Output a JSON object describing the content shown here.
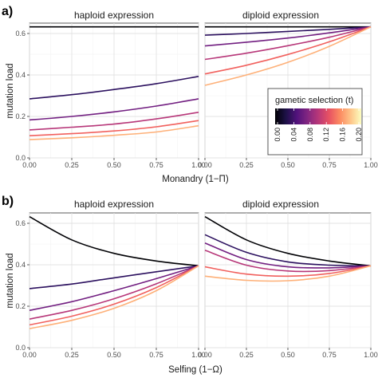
{
  "figure": {
    "panels": [
      {
        "letter": "a)",
        "ylabel": "mutation load",
        "xlabel": "Monandry (1−Π)",
        "facets": [
          "haploid expression",
          "diploid expression"
        ]
      },
      {
        "letter": "b)",
        "ylabel": "mutation load",
        "xlabel": "Selfing (1−Ω)",
        "facets": [
          "haploid expression",
          "diploid expression"
        ]
      }
    ],
    "legend": {
      "title": "gametic selection (t)",
      "ticks": [
        "0.00",
        "0.04",
        "0.08",
        "0.12",
        "0.16",
        "0.20"
      ],
      "range": [
        0,
        0.2
      ],
      "colors": [
        "#000004",
        "#1d1147",
        "#51127c",
        "#822681",
        "#b73779",
        "#e75263",
        "#fc8961",
        "#fec488",
        "#fcfdbf"
      ]
    }
  },
  "chart_data": [
    {
      "type": "line",
      "panel": "a)",
      "facet": "haploid expression",
      "xlabel": "Monandry (1−Π)",
      "ylabel": "mutation load",
      "xlim": [
        0,
        1
      ],
      "ylim": [
        0,
        0.65
      ],
      "xticks": [
        "0.00",
        "0.25",
        "0.50",
        "0.75",
        "1.00"
      ],
      "yticks": [
        "0.0",
        "0.2",
        "0.4",
        "0.6"
      ],
      "grid": true,
      "x": [
        0,
        0.25,
        0.5,
        0.75,
        1.0
      ],
      "series": [
        {
          "t": 0.0,
          "color": "#000004",
          "values": [
            0.632,
            0.632,
            0.632,
            0.632,
            0.632
          ]
        },
        {
          "t": 0.04,
          "color": "#2c115f",
          "values": [
            0.285,
            0.305,
            0.33,
            0.358,
            0.393
          ]
        },
        {
          "t": 0.08,
          "color": "#721f81",
          "values": [
            0.183,
            0.2,
            0.222,
            0.25,
            0.285
          ]
        },
        {
          "t": 0.12,
          "color": "#b73779",
          "values": [
            0.135,
            0.148,
            0.163,
            0.188,
            0.22
          ]
        },
        {
          "t": 0.16,
          "color": "#f1605d",
          "values": [
            0.107,
            0.117,
            0.13,
            0.15,
            0.18
          ]
        },
        {
          "t": 0.2,
          "color": "#feb078",
          "values": [
            0.088,
            0.097,
            0.109,
            0.125,
            0.155
          ]
        }
      ]
    },
    {
      "type": "line",
      "panel": "a)",
      "facet": "diploid expression",
      "xlabel": "Monandry (1−Π)",
      "ylabel": "mutation load",
      "xlim": [
        0,
        1
      ],
      "ylim": [
        0,
        0.65
      ],
      "xticks": [
        "0.00",
        "0.25",
        "0.50",
        "0.75",
        "1.00"
      ],
      "yticks": [
        "0.0",
        "0.2",
        "0.4",
        "0.6"
      ],
      "grid": true,
      "x": [
        0,
        0.25,
        0.5,
        0.75,
        1.0
      ],
      "series": [
        {
          "t": 0.0,
          "color": "#000004",
          "values": [
            0.632,
            0.632,
            0.632,
            0.632,
            0.632
          ]
        },
        {
          "t": 0.04,
          "color": "#2c115f",
          "values": [
            0.592,
            0.6,
            0.61,
            0.62,
            0.632
          ]
        },
        {
          "t": 0.08,
          "color": "#721f81",
          "values": [
            0.54,
            0.558,
            0.578,
            0.603,
            0.632
          ]
        },
        {
          "t": 0.12,
          "color": "#b73779",
          "values": [
            0.475,
            0.505,
            0.541,
            0.582,
            0.632
          ]
        },
        {
          "t": 0.16,
          "color": "#f1605d",
          "values": [
            0.405,
            0.447,
            0.499,
            0.56,
            0.632
          ]
        },
        {
          "t": 0.2,
          "color": "#feb078",
          "values": [
            0.35,
            0.4,
            0.461,
            0.538,
            0.632
          ]
        }
      ]
    },
    {
      "type": "line",
      "panel": "b)",
      "facet": "haploid expression",
      "xlabel": "Selfing (1−Ω)",
      "ylabel": "mutation load",
      "xlim": [
        0,
        1
      ],
      "ylim": [
        0,
        0.65
      ],
      "xticks": [
        "0.00",
        "0.25",
        "0.50",
        "0.75",
        "1.00"
      ],
      "yticks": [
        "0.0",
        "0.2",
        "0.4",
        "0.6"
      ],
      "grid": true,
      "x": [
        0,
        0.25,
        0.5,
        0.75,
        1.0
      ],
      "series": [
        {
          "t": 0.0,
          "color": "#000004",
          "values": [
            0.632,
            0.52,
            0.455,
            0.418,
            0.395
          ]
        },
        {
          "t": 0.04,
          "color": "#2c115f",
          "values": [
            0.285,
            0.307,
            0.337,
            0.366,
            0.395
          ]
        },
        {
          "t": 0.08,
          "color": "#721f81",
          "values": [
            0.18,
            0.222,
            0.275,
            0.333,
            0.395
          ]
        },
        {
          "t": 0.12,
          "color": "#b73779",
          "values": [
            0.138,
            0.18,
            0.236,
            0.308,
            0.395
          ]
        },
        {
          "t": 0.16,
          "color": "#f1605d",
          "values": [
            0.11,
            0.152,
            0.21,
            0.29,
            0.395
          ]
        },
        {
          "t": 0.2,
          "color": "#feb078",
          "values": [
            0.092,
            0.132,
            0.19,
            0.275,
            0.395
          ]
        }
      ]
    },
    {
      "type": "line",
      "panel": "b)",
      "facet": "diploid expression",
      "xlabel": "Selfing (1−Ω)",
      "ylabel": "mutation load",
      "xlim": [
        0,
        1
      ],
      "ylim": [
        0,
        0.65
      ],
      "xticks": [
        "0.00",
        "0.25",
        "0.50",
        "0.75",
        "1.00"
      ],
      "yticks": [
        "0.0",
        "0.2",
        "0.4",
        "0.6"
      ],
      "grid": true,
      "x": [
        0,
        0.25,
        0.5,
        0.75,
        1.0
      ],
      "series": [
        {
          "t": 0.0,
          "color": "#000004",
          "values": [
            0.632,
            0.52,
            0.455,
            0.418,
            0.395
          ]
        },
        {
          "t": 0.04,
          "color": "#2c115f",
          "values": [
            0.545,
            0.46,
            0.414,
            0.398,
            0.395
          ]
        },
        {
          "t": 0.08,
          "color": "#721f81",
          "values": [
            0.505,
            0.425,
            0.39,
            0.385,
            0.395
          ]
        },
        {
          "t": 0.12,
          "color": "#b73779",
          "values": [
            0.47,
            0.398,
            0.37,
            0.372,
            0.395
          ]
        },
        {
          "t": 0.16,
          "color": "#f1605d",
          "values": [
            0.39,
            0.355,
            0.345,
            0.358,
            0.395
          ]
        },
        {
          "t": 0.2,
          "color": "#feb078",
          "values": [
            0.345,
            0.325,
            0.323,
            0.345,
            0.395
          ]
        }
      ]
    }
  ]
}
